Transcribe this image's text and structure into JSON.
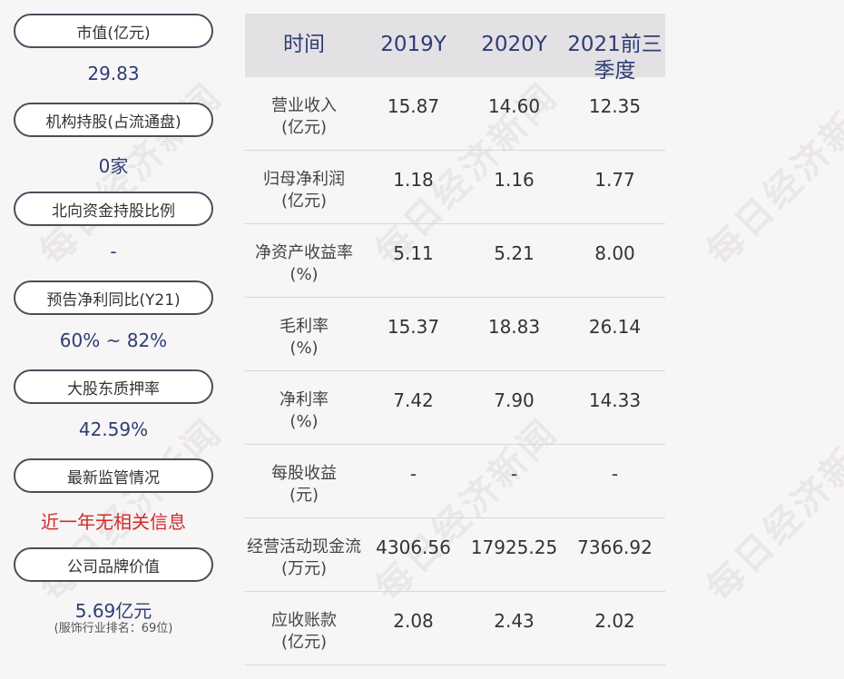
{
  "watermark": "每日经济新闻",
  "left": {
    "items": [
      {
        "label": "市值(亿元)",
        "value": "29.83"
      },
      {
        "label": "机构持股(占流通盘)",
        "value": "0家"
      },
      {
        "label": "北向资金持股比例",
        "value": "-"
      },
      {
        "label": "预告净利同比(Y21)",
        "value": "60% ~ 82%"
      },
      {
        "label": "大股东质押率",
        "value": "42.59%"
      },
      {
        "label": "最新监管情况",
        "value": "近一年无相关信息"
      },
      {
        "label": "公司品牌价值",
        "value": "5.69亿元",
        "note": "(服饰行业排名：69位)"
      }
    ]
  },
  "table": {
    "headers": [
      "时间",
      "2019Y",
      "2020Y",
      "2021前三季度"
    ],
    "rows": [
      {
        "label1": "营业收入",
        "label2": "(亿元)",
        "values": [
          "15.87",
          "14.60",
          "12.35"
        ]
      },
      {
        "label1": "归母净利润",
        "label2": "(亿元)",
        "values": [
          "1.18",
          "1.16",
          "1.77"
        ]
      },
      {
        "label1": "净资产收益率",
        "label2": "(%)",
        "values": [
          "5.11",
          "5.21",
          "8.00"
        ]
      },
      {
        "label1": "毛利率",
        "label2": "(%)",
        "values": [
          "15.37",
          "18.83",
          "26.14"
        ]
      },
      {
        "label1": "净利率",
        "label2": "(%)",
        "values": [
          "7.42",
          "7.90",
          "14.33"
        ]
      },
      {
        "label1": "每股收益",
        "label2": "(元)",
        "values": [
          "-",
          "-",
          "-"
        ]
      },
      {
        "label1": "经营活动现金流",
        "label2": "(万元)",
        "values": [
          "4306.56",
          "17925.25",
          "7366.92"
        ]
      },
      {
        "label1": "应收账款",
        "label2": "(亿元)",
        "values": [
          "2.08",
          "2.43",
          "2.02"
        ]
      }
    ]
  }
}
